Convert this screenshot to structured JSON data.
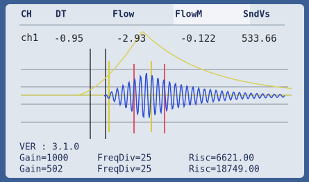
{
  "header": {
    "columns": [
      "CH",
      "DT",
      "Flow",
      "FlowM",
      "SndVs"
    ]
  },
  "readout": {
    "label": "ch1",
    "values": [
      "-0.95",
      "-2.93",
      "-0.122",
      "533.66"
    ]
  },
  "footer": {
    "version": "VER : 3.1.0",
    "rows": [
      [
        "Gain=1000",
        "FreqDiv=25",
        "Risc=6621.00"
      ],
      [
        "Gain=502",
        "FreqDiv=25",
        "Risc=18749.00"
      ]
    ]
  }
}
